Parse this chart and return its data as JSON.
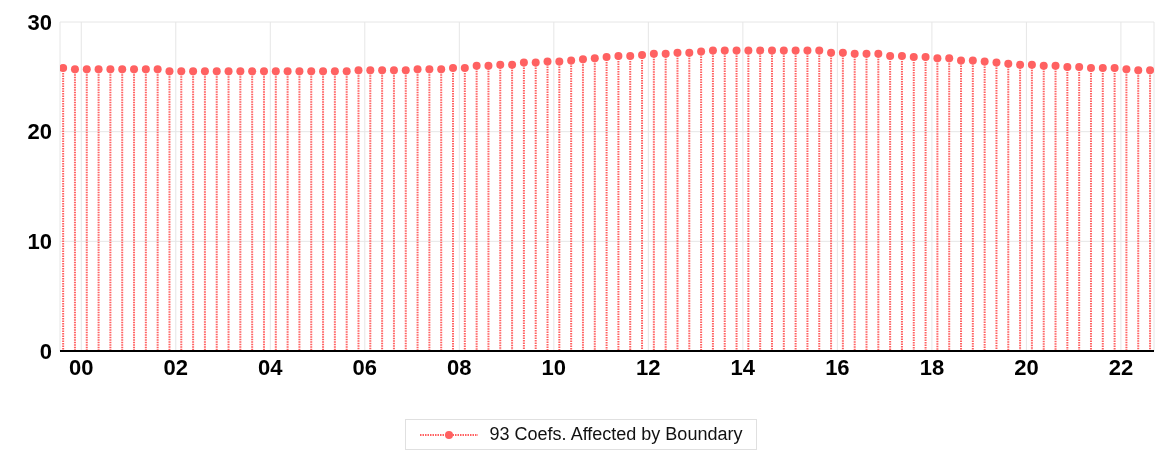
{
  "chart_data": {
    "type": "lollipop",
    "x": [
      -0.375,
      -0.125,
      0.125,
      0.375,
      0.625,
      0.875,
      1.125,
      1.375,
      1.625,
      1.875,
      2.125,
      2.375,
      2.625,
      2.875,
      3.125,
      3.375,
      3.625,
      3.875,
      4.125,
      4.375,
      4.625,
      4.875,
      5.125,
      5.375,
      5.625,
      5.875,
      6.125,
      6.375,
      6.625,
      6.875,
      7.125,
      7.375,
      7.625,
      7.875,
      8.125,
      8.375,
      8.625,
      8.875,
      9.125,
      9.375,
      9.625,
      9.875,
      10.125,
      10.375,
      10.625,
      10.875,
      11.125,
      11.375,
      11.625,
      11.875,
      12.125,
      12.375,
      12.625,
      12.875,
      13.125,
      13.375,
      13.625,
      13.875,
      14.125,
      14.375,
      14.625,
      14.875,
      15.125,
      15.375,
      15.625,
      15.875,
      16.125,
      16.375,
      16.625,
      16.875,
      17.125,
      17.375,
      17.625,
      17.875,
      18.125,
      18.375,
      18.625,
      18.875,
      19.125,
      19.375,
      19.625,
      19.875,
      20.125,
      20.375,
      20.625,
      20.875,
      21.125,
      21.375,
      21.625,
      21.875,
      22.125,
      22.375,
      22.625
    ],
    "series": [
      {
        "name": "93 Coefs. Affected by Boundary",
        "color": "#ff6161",
        "values": [
          25.8,
          25.7,
          25.7,
          25.7,
          25.7,
          25.7,
          25.7,
          25.7,
          25.7,
          25.5,
          25.5,
          25.5,
          25.5,
          25.5,
          25.5,
          25.5,
          25.5,
          25.5,
          25.5,
          25.5,
          25.5,
          25.5,
          25.5,
          25.5,
          25.5,
          25.6,
          25.6,
          25.6,
          25.6,
          25.6,
          25.7,
          25.7,
          25.7,
          25.8,
          25.8,
          26.0,
          26.0,
          26.1,
          26.1,
          26.3,
          26.3,
          26.4,
          26.4,
          26.5,
          26.6,
          26.7,
          26.8,
          26.9,
          26.9,
          27.0,
          27.1,
          27.1,
          27.2,
          27.2,
          27.3,
          27.4,
          27.4,
          27.4,
          27.4,
          27.4,
          27.4,
          27.4,
          27.4,
          27.4,
          27.4,
          27.2,
          27.2,
          27.1,
          27.1,
          27.1,
          26.9,
          26.9,
          26.8,
          26.8,
          26.7,
          26.7,
          26.5,
          26.5,
          26.4,
          26.3,
          26.2,
          26.1,
          26.1,
          26.0,
          26.0,
          25.9,
          25.9,
          25.8,
          25.8,
          25.8,
          25.7,
          25.6,
          25.6
        ]
      }
    ],
    "xlim": [
      -0.45,
      22.7
    ],
    "xticks": [
      {
        "value": 0,
        "label": "00"
      },
      {
        "value": 2,
        "label": "02"
      },
      {
        "value": 4,
        "label": "04"
      },
      {
        "value": 6,
        "label": "06"
      },
      {
        "value": 8,
        "label": "08"
      },
      {
        "value": 10,
        "label": "10"
      },
      {
        "value": 12,
        "label": "12"
      },
      {
        "value": 14,
        "label": "14"
      },
      {
        "value": 16,
        "label": "16"
      },
      {
        "value": 18,
        "label": "18"
      },
      {
        "value": 20,
        "label": "20"
      },
      {
        "value": 22,
        "label": "22"
      }
    ],
    "ylim": [
      0,
      30
    ],
    "yticks": [
      0,
      10,
      20,
      30
    ],
    "grid": true,
    "legend": "bottom",
    "marker": "circle",
    "line_style": "dotted"
  }
}
